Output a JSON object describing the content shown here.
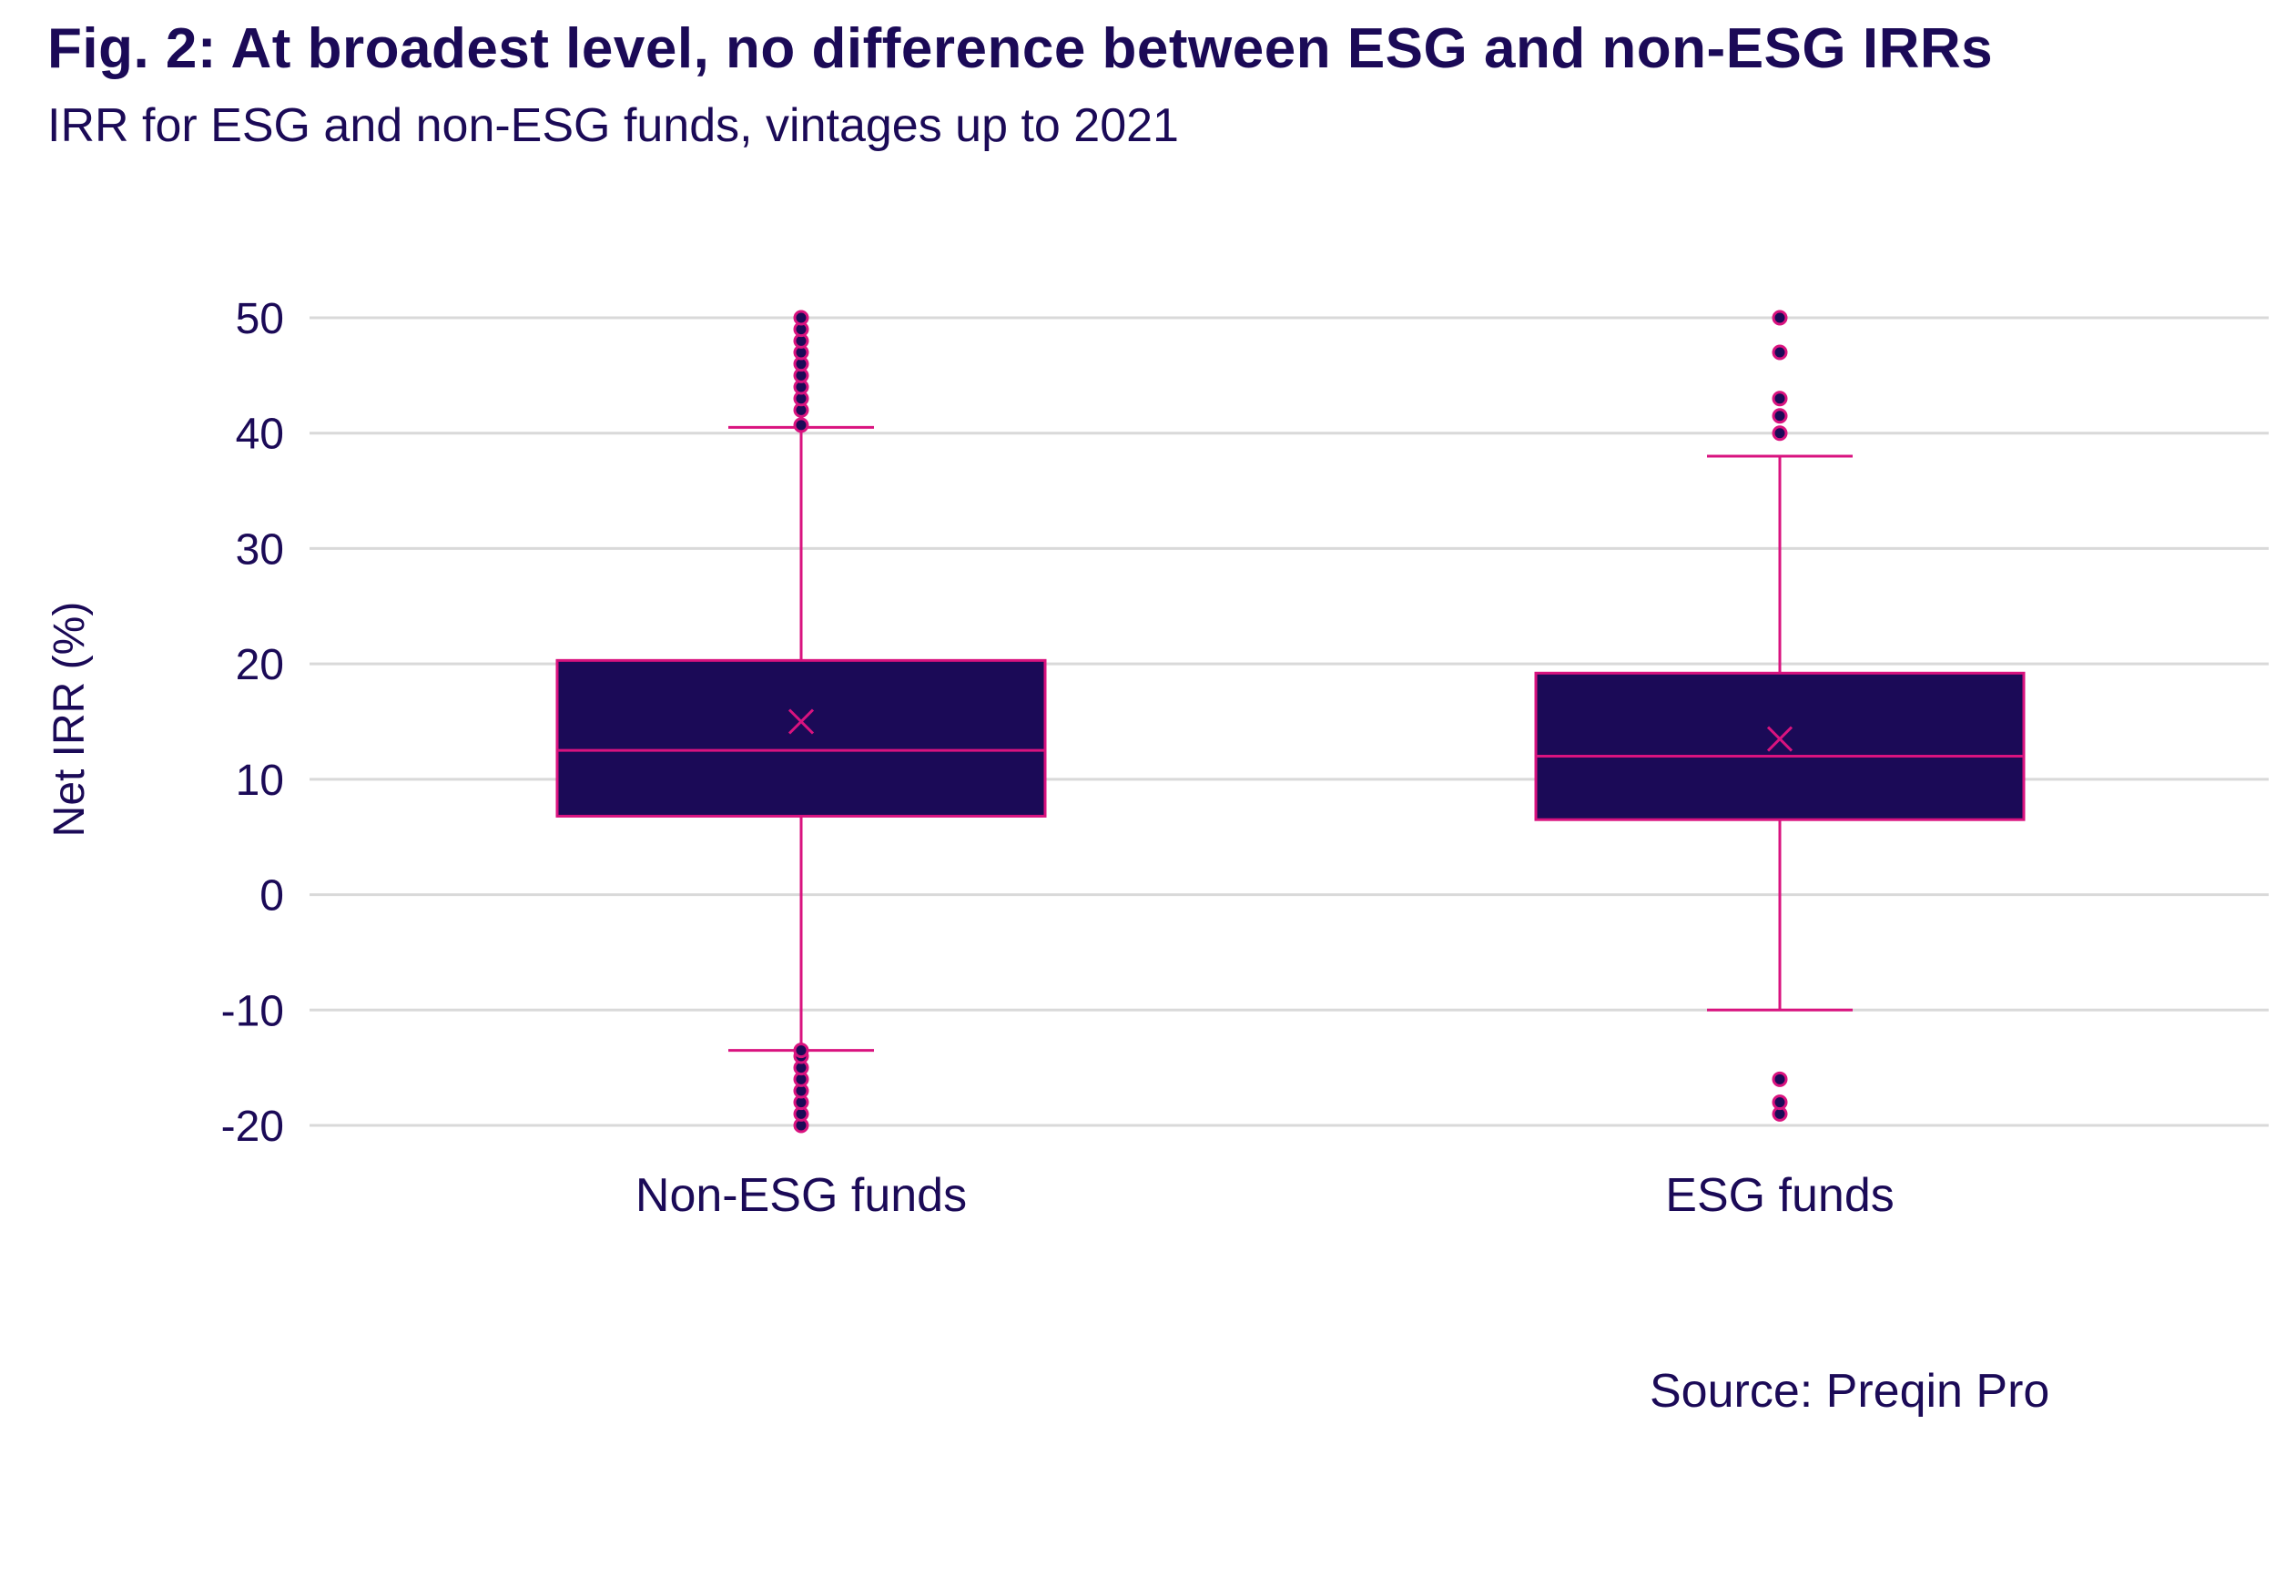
{
  "header": {
    "title": "Fig. 2:  At broadest level, no difference between ESG and non-ESG IRRs",
    "subtitle": "IRR for ESG and non-ESG funds, vintages up to 2021"
  },
  "footer": {
    "source": "Source: Preqin Pro"
  },
  "colors": {
    "box_fill": "#1b0a57",
    "accent": "#d9137f",
    "text": "#1b0a57",
    "grid": "#d9d9d9"
  },
  "chart_data": {
    "type": "box",
    "title": "Fig. 2:  At broadest level, no difference between ESG and non-ESG IRRs",
    "subtitle": "IRR for ESG and non-ESG funds, vintages up to 2021",
    "ylabel": "Net IRR (%)",
    "xlabel": "",
    "ylim": [
      -20,
      50
    ],
    "yticks": [
      50,
      40,
      30,
      20,
      10,
      0,
      -10,
      -20
    ],
    "grid": true,
    "categories": [
      "Non-ESG funds",
      "ESG funds"
    ],
    "boxes": [
      {
        "category": "Non-ESG funds",
        "whisker_low": -13.5,
        "q1": 6.8,
        "median": 12.5,
        "q3": 20.3,
        "whisker_high": 40.5,
        "mean": 15.0,
        "outliers": [
          -20,
          -19,
          -18,
          -17,
          -16,
          -15,
          -14,
          -13.5,
          40.7,
          42,
          43,
          44,
          45,
          46,
          47,
          48,
          49,
          50
        ]
      },
      {
        "category": "ESG funds",
        "whisker_low": -10,
        "q1": 6.5,
        "median": 12,
        "q3": 19.2,
        "whisker_high": 38,
        "mean": 13.5,
        "outliers": [
          -19,
          -18,
          -16,
          40,
          41.5,
          43,
          47,
          50
        ]
      }
    ]
  }
}
